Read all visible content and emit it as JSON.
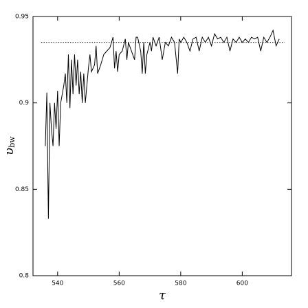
{
  "chart_data": {
    "type": "line",
    "xlabel": "τ",
    "ylabel": "υ",
    "ylabel_sub": "bw",
    "xlim": [
      532,
      616
    ],
    "ylim": [
      0.8,
      0.95
    ],
    "xticks": [
      540,
      560,
      580,
      600
    ],
    "yticks": [
      0.8,
      0.85,
      0.9,
      0.95
    ],
    "hline": 0.935,
    "color": "#000000",
    "x": [
      536,
      536.5,
      537,
      537.5,
      538,
      538.5,
      539,
      539.5,
      540,
      540.5,
      541,
      542,
      542.5,
      543,
      543.5,
      544,
      544.5,
      545,
      545.5,
      546,
      546.5,
      547,
      547.5,
      548,
      548.5,
      549,
      550,
      550.5,
      551,
      552,
      552.5,
      553,
      554,
      555,
      556,
      557,
      558,
      558.5,
      559,
      559.5,
      560,
      561,
      562,
      562.5,
      563,
      564,
      565,
      565.5,
      566,
      567,
      567.5,
      568,
      568.5,
      569,
      570,
      570.5,
      571,
      572,
      573,
      574,
      575,
      576,
      577,
      578,
      579,
      579.5,
      580,
      581,
      582,
      583,
      584,
      585,
      586,
      587,
      588,
      589,
      590,
      591,
      592,
      593,
      594,
      595,
      596,
      597,
      598,
      599,
      600,
      601,
      602,
      603,
      604,
      605,
      606,
      607,
      608,
      609,
      610,
      611,
      612
    ],
    "values": [
      0.875,
      0.906,
      0.833,
      0.9,
      0.885,
      0.875,
      0.9,
      0.885,
      0.907,
      0.875,
      0.9,
      0.91,
      0.917,
      0.9,
      0.928,
      0.897,
      0.925,
      0.905,
      0.928,
      0.91,
      0.925,
      0.905,
      0.918,
      0.9,
      0.917,
      0.9,
      0.92,
      0.928,
      0.918,
      0.922,
      0.933,
      0.917,
      0.922,
      0.928,
      0.93,
      0.932,
      0.938,
      0.92,
      0.93,
      0.918,
      0.928,
      0.93,
      0.937,
      0.925,
      0.935,
      0.93,
      0.925,
      0.938,
      0.938,
      0.93,
      0.917,
      0.935,
      0.917,
      0.928,
      0.935,
      0.93,
      0.938,
      0.933,
      0.938,
      0.925,
      0.935,
      0.933,
      0.938,
      0.935,
      0.917,
      0.937,
      0.935,
      0.938,
      0.935,
      0.93,
      0.937,
      0.938,
      0.93,
      0.938,
      0.935,
      0.938,
      0.933,
      0.94,
      0.937,
      0.938,
      0.935,
      0.938,
      0.93,
      0.937,
      0.935,
      0.938,
      0.935,
      0.937,
      0.935,
      0.938,
      0.937,
      0.938,
      0.93,
      0.938,
      0.935,
      0.938,
      0.942,
      0.933,
      0.937
    ]
  }
}
